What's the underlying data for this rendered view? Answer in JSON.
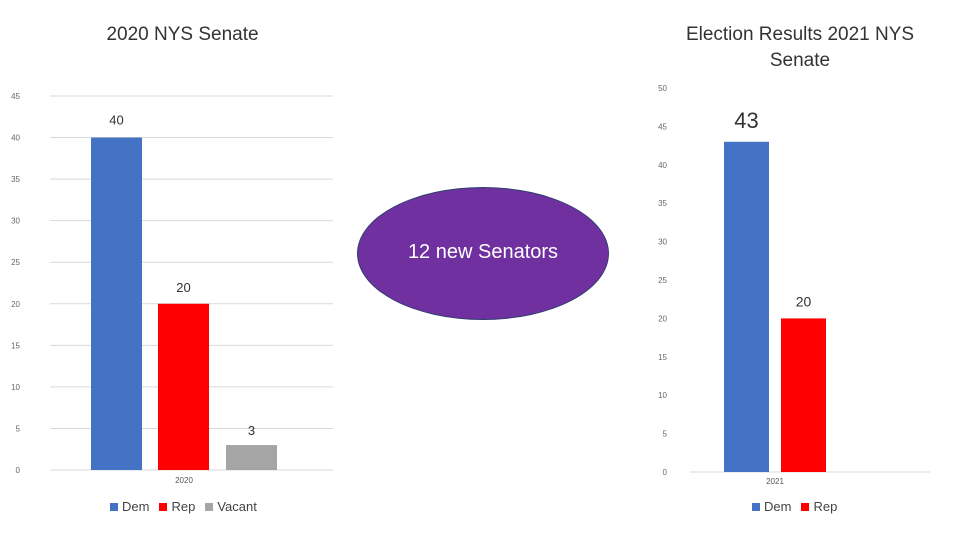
{
  "chart_data": [
    {
      "type": "bar",
      "title": "2020 NYS Senate",
      "categories": [
        "2020"
      ],
      "series": [
        {
          "name": "Dem",
          "values": [
            40
          ],
          "color": "#4472c4"
        },
        {
          "name": "Rep",
          "values": [
            20
          ],
          "color": "#ff0000"
        },
        {
          "name": "Vacant",
          "values": [
            3
          ],
          "color": "#a5a5a5"
        }
      ],
      "ylim": [
        0,
        45
      ],
      "yticks": [
        0,
        5,
        10,
        15,
        20,
        25,
        30,
        35,
        40,
        45
      ],
      "grid": true,
      "legend": "bottom"
    },
    {
      "type": "bar",
      "title": "Election Results 2021 NYS Senate",
      "categories": [
        "2021"
      ],
      "series": [
        {
          "name": "Dem",
          "values": [
            43
          ],
          "color": "#4472c4"
        },
        {
          "name": "Rep",
          "values": [
            20
          ],
          "color": "#ff0000"
        }
      ],
      "ylim": [
        0,
        50
      ],
      "yticks": [
        0,
        5,
        10,
        15,
        20,
        25,
        30,
        35,
        40,
        45,
        50
      ],
      "grid": false,
      "legend": "bottom"
    }
  ],
  "callout": {
    "text": "12 new Senators",
    "color": "#7030a0"
  }
}
